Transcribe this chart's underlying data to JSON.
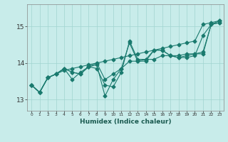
{
  "xlabel": "Humidex (Indice chaleur)",
  "xlim": [
    -0.5,
    23.5
  ],
  "ylim": [
    12.7,
    15.6
  ],
  "yticks": [
    13,
    14,
    15
  ],
  "xtick_labels": [
    "0",
    "1",
    "2",
    "3",
    "4",
    "5",
    "6",
    "7",
    "8",
    "9",
    "10",
    "11",
    "12",
    "13",
    "14",
    "15",
    "16",
    "17",
    "18",
    "19",
    "20",
    "21",
    "22",
    "23"
  ],
  "background_color": "#c8ecea",
  "grid_color": "#a0d4d0",
  "line_color": "#1a7a6e",
  "series": [
    [
      13.4,
      13.2,
      13.6,
      13.7,
      13.8,
      13.85,
      13.9,
      13.95,
      14.0,
      14.05,
      14.1,
      14.15,
      14.2,
      14.25,
      14.3,
      14.35,
      14.4,
      14.45,
      14.5,
      14.55,
      14.6,
      15.05,
      15.1,
      15.15
    ],
    [
      13.4,
      13.2,
      13.6,
      13.7,
      13.85,
      13.75,
      13.7,
      13.9,
      13.85,
      13.4,
      13.35,
      13.75,
      14.6,
      14.1,
      14.1,
      14.1,
      14.2,
      14.2,
      14.15,
      14.2,
      14.25,
      14.25,
      15.05,
      15.15
    ],
    [
      13.4,
      13.2,
      13.6,
      13.7,
      13.85,
      13.75,
      13.7,
      13.9,
      13.95,
      13.1,
      13.55,
      13.85,
      14.55,
      14.05,
      14.05,
      14.35,
      14.35,
      14.2,
      14.15,
      14.15,
      14.2,
      14.75,
      15.05,
      15.1
    ],
    [
      13.4,
      13.2,
      13.6,
      13.7,
      13.85,
      13.55,
      13.75,
      13.9,
      14.0,
      13.55,
      13.7,
      13.85,
      14.05,
      14.05,
      14.1,
      14.35,
      14.35,
      14.2,
      14.2,
      14.25,
      14.25,
      14.3,
      15.05,
      15.1
    ]
  ]
}
